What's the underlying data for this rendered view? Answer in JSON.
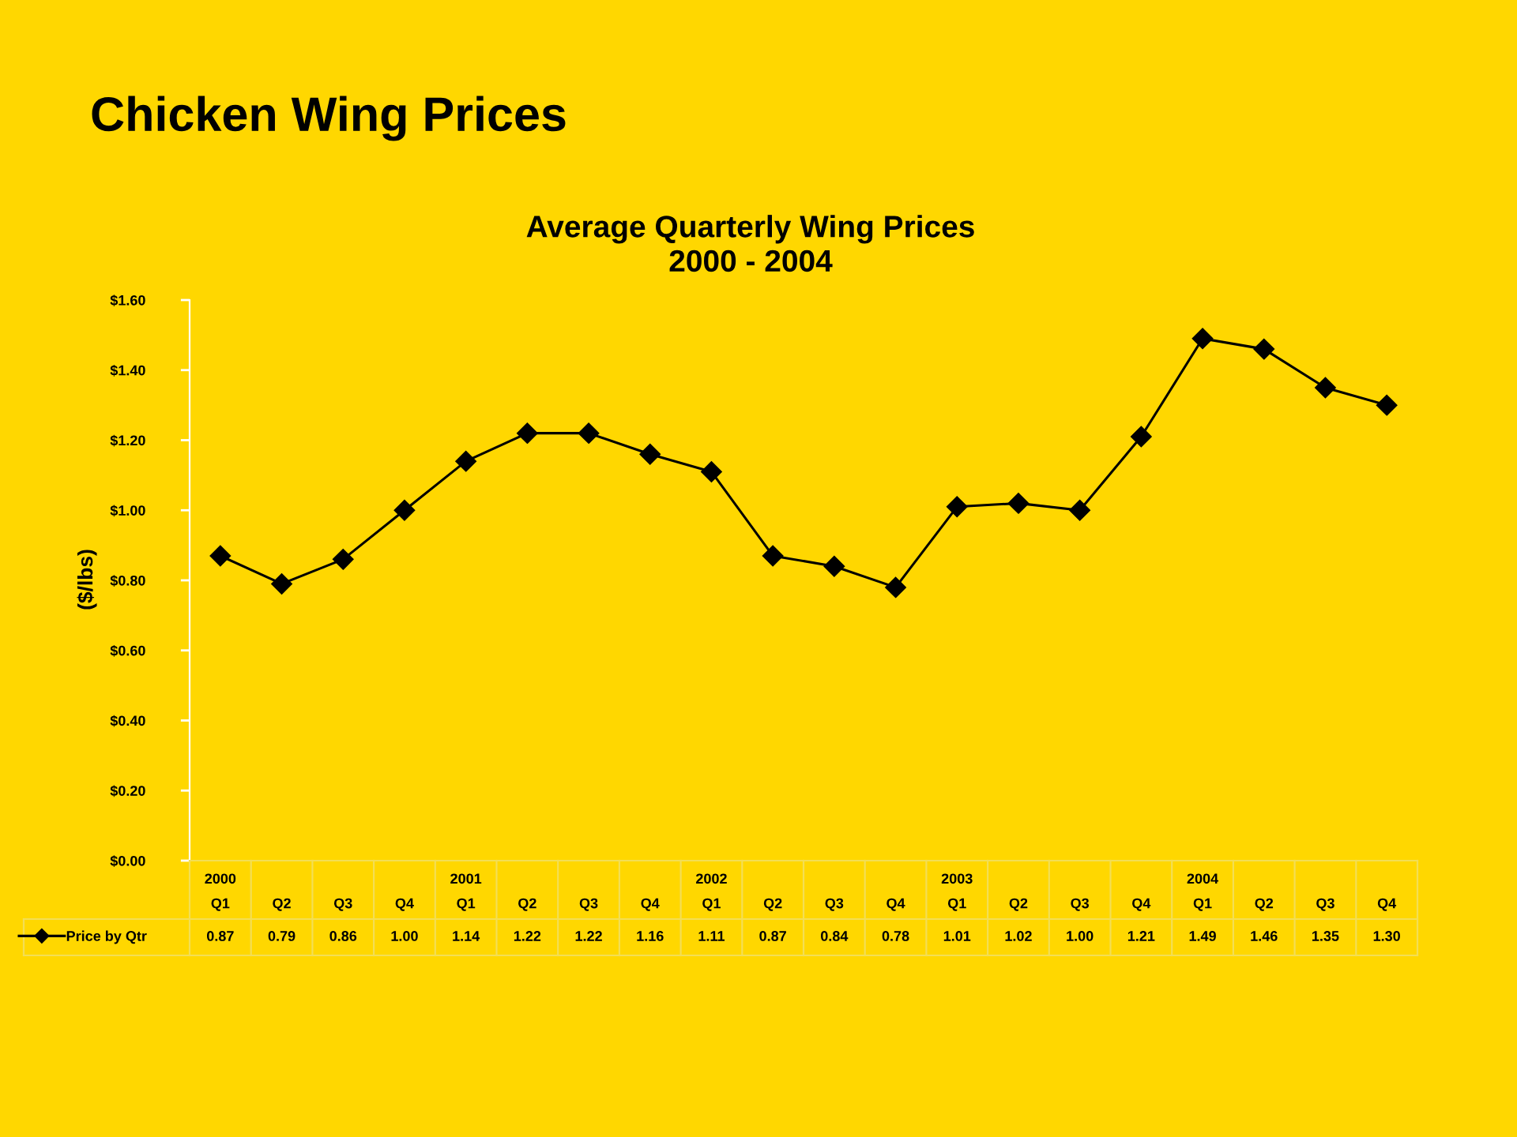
{
  "chart_data": {
    "type": "line",
    "title": "Chicken Wing Prices",
    "subtitle": "Average Quarterly Wing Prices\n2000 - 2004",
    "ylabel": "($/lbs)",
    "categories": [
      "2000\nQ1",
      "Q2",
      "Q3",
      "Q4",
      "2001\nQ1",
      "Q2",
      "Q3",
      "Q4",
      "2002\nQ1",
      "Q2",
      "Q3",
      "Q4",
      "2003\nQ1",
      "Q2",
      "Q3",
      "Q4",
      "2004\nQ1",
      "Q2",
      "Q3",
      "Q4"
    ],
    "series": [
      {
        "name": "Price by Qtr",
        "color": "#000000",
        "values": [
          0.87,
          0.79,
          0.86,
          1.0,
          1.14,
          1.22,
          1.22,
          1.16,
          1.11,
          0.87,
          0.84,
          0.78,
          1.01,
          1.02,
          1.0,
          1.21,
          1.49,
          1.46,
          1.35,
          1.3
        ],
        "value_labels": [
          "0.87",
          "0.79",
          "0.86",
          "1.00",
          "1.14",
          "1.22",
          "1.22",
          "1.16",
          "1.11",
          "0.87",
          "0.84",
          "0.78",
          "1.01",
          "1.02",
          "1.00",
          "1.21",
          "1.49",
          "1.46",
          "1.35",
          "1.30"
        ]
      }
    ],
    "ylim": [
      0,
      1.6
    ],
    "yticks": [
      {
        "value": 0,
        "label": "$0.00"
      },
      {
        "value": 0.2,
        "label": "$0.20"
      },
      {
        "value": 0.4,
        "label": "$0.40"
      },
      {
        "value": 0.6,
        "label": "$0.60"
      },
      {
        "value": 0.8,
        "label": "$0.80"
      },
      {
        "value": 1.0,
        "label": "$1.00"
      },
      {
        "value": 1.2,
        "label": "$1.20"
      },
      {
        "value": 1.4,
        "label": "$1.40"
      },
      {
        "value": 1.6,
        "label": "$1.60"
      }
    ],
    "marker": "diamond",
    "line_style": "solid",
    "legend": "bottom left",
    "grid": false
  }
}
